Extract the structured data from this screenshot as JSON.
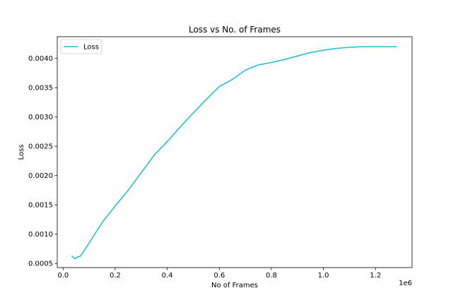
{
  "chart_data": {
    "type": "line",
    "title": "Loss vs No. of Frames",
    "xlabel": "No of Frames",
    "ylabel": "Loss",
    "x_multiplier_label": "1e6",
    "xlim": [
      -0.0225,
      1.3405
    ],
    "ylim": [
      0.00043,
      0.00437
    ],
    "xticks": [
      0.0,
      0.2,
      0.4,
      0.6,
      0.8,
      1.0,
      1.2
    ],
    "xtick_labels": [
      "0.0",
      "0.2",
      "0.4",
      "0.6",
      "0.8",
      "1.0",
      "1.2"
    ],
    "yticks": [
      0.0005,
      0.001,
      0.0015,
      0.002,
      0.0025,
      0.003,
      0.0035,
      0.004
    ],
    "ytick_labels": [
      "0.0005",
      "0.0010",
      "0.0015",
      "0.0020",
      "0.0025",
      "0.0030",
      "0.0035",
      "0.0040"
    ],
    "grid": false,
    "legend_position": "upper-left",
    "series": [
      {
        "name": "Loss",
        "color": "#17becf",
        "x": [
          0.035,
          0.045,
          0.055,
          0.065,
          0.075,
          0.1,
          0.15,
          0.2,
          0.25,
          0.3,
          0.35,
          0.4,
          0.45,
          0.5,
          0.55,
          0.6,
          0.65,
          0.7,
          0.75,
          0.8,
          0.85,
          0.9,
          0.95,
          1.0,
          1.05,
          1.1,
          1.15,
          1.2,
          1.25,
          1.28
        ],
        "y": [
          0.00062,
          0.00058,
          0.00061,
          0.00062,
          0.00068,
          0.00085,
          0.0012,
          0.00148,
          0.00175,
          0.00205,
          0.00235,
          0.00258,
          0.00283,
          0.00307,
          0.0033,
          0.00352,
          0.00364,
          0.0038,
          0.00389,
          0.00393,
          0.00398,
          0.00404,
          0.0041,
          0.00414,
          0.00417,
          0.00419,
          0.0042,
          0.0042,
          0.0042,
          0.0042
        ]
      }
    ]
  }
}
